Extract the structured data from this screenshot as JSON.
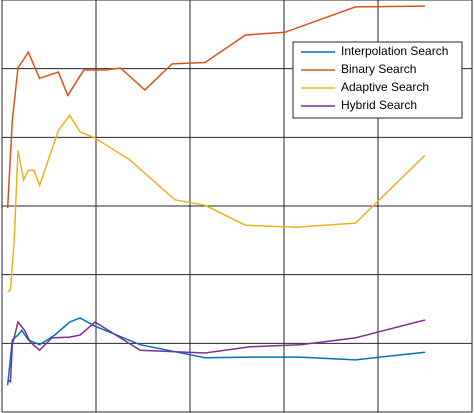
{
  "chart_data": {
    "type": "line",
    "xlim": [
      0,
      5
    ],
    "ylim": [
      0,
      6
    ],
    "xticks": [
      0,
      1,
      2,
      3,
      4,
      5
    ],
    "yticks": [
      0,
      1,
      2,
      3,
      4,
      5,
      6
    ],
    "grid": true,
    "legend": "upper right",
    "series": [
      {
        "name": "Interpolation Search",
        "color": "#0072bd",
        "x": [
          0.06,
          0.11,
          0.17,
          0.21,
          0.28,
          0.4,
          0.56,
          0.72,
          0.83,
          0.99,
          1.47,
          2.16,
          2.64,
          3.17,
          3.76,
          4.5
        ],
        "values": [
          0.39,
          1.05,
          1.12,
          1.19,
          1.05,
          0.98,
          1.12,
          1.31,
          1.37,
          1.25,
          0.98,
          0.79,
          0.8,
          0.8,
          0.76,
          0.87
        ]
      },
      {
        "name": "Binary Search",
        "color": "#d95319",
        "x": [
          0.06,
          0.11,
          0.17,
          0.28,
          0.4,
          0.6,
          0.7,
          0.87,
          1.1,
          1.26,
          1.52,
          1.81,
          2.16,
          2.59,
          3.01,
          3.76,
          4.5
        ],
        "values": [
          2.97,
          4.25,
          5.01,
          5.24,
          4.86,
          4.95,
          4.61,
          4.98,
          4.98,
          5.01,
          4.69,
          5.07,
          5.09,
          5.49,
          5.53,
          5.9,
          5.91
        ]
      },
      {
        "name": "Adaptive Search",
        "color": "#edb120",
        "x": [
          0.06,
          0.09,
          0.13,
          0.17,
          0.23,
          0.28,
          0.34,
          0.4,
          0.6,
          0.72,
          0.83,
          0.99,
          1.36,
          1.84,
          2.16,
          2.59,
          3.12,
          3.76,
          4.5
        ],
        "values": [
          1.75,
          1.78,
          2.5,
          3.81,
          3.38,
          3.52,
          3.52,
          3.3,
          4.1,
          4.32,
          4.08,
          3.99,
          3.67,
          3.09,
          3.01,
          2.72,
          2.69,
          2.75,
          3.74
        ]
      },
      {
        "name": "Hybrid Search",
        "color": "#7e2f8e",
        "x": [
          0.06,
          0.09,
          0.11,
          0.17,
          0.24,
          0.3,
          0.4,
          0.53,
          0.72,
          0.83,
          0.99,
          1.47,
          2.16,
          2.64,
          3.17,
          3.76,
          4.5
        ],
        "values": [
          0.47,
          0.44,
          0.98,
          1.31,
          1.19,
          1.02,
          0.9,
          1.08,
          1.09,
          1.12,
          1.31,
          0.9,
          0.86,
          0.95,
          0.98,
          1.08,
          1.34
        ]
      }
    ]
  }
}
